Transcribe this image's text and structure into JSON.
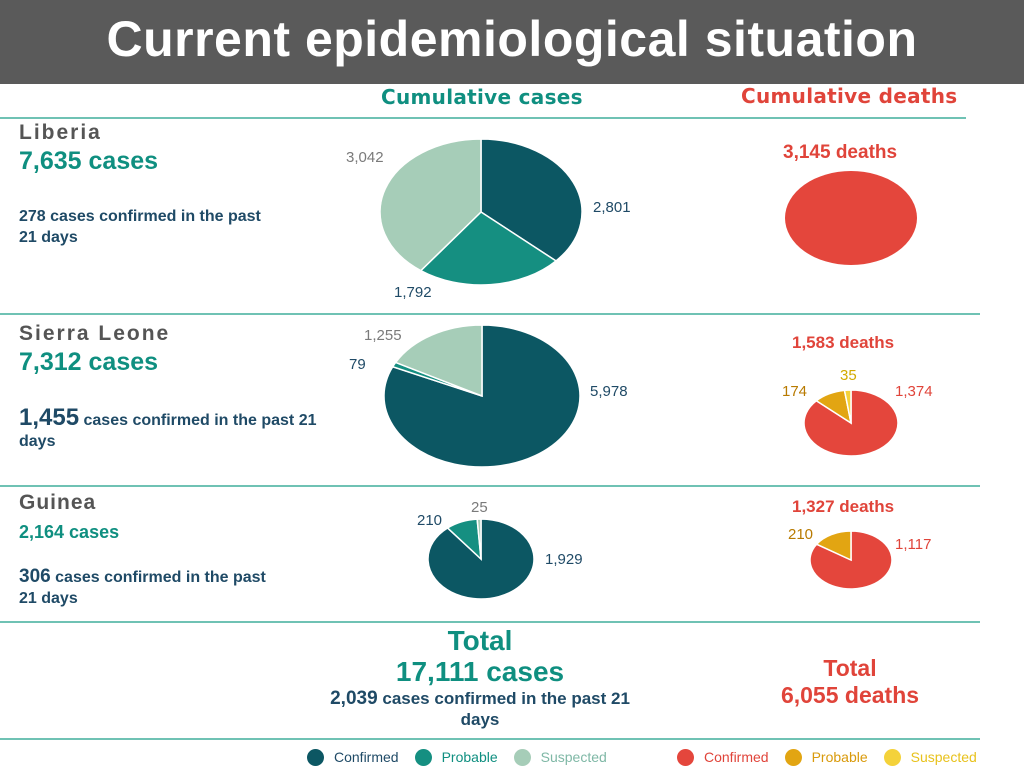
{
  "header": {
    "title": "Current epidemiological situation"
  },
  "columns": {
    "cases": "Cumulative cases",
    "deaths": "Cumulative deaths"
  },
  "colors": {
    "confirmed": "#0c5763",
    "probable": "#158f81",
    "suspected": "#a6cdb8",
    "death_confirmed": "#e4463c",
    "death_probable": "#e2a512",
    "death_suspected": "#f4d23a"
  },
  "countries": [
    {
      "name": "Liberia",
      "cases_text": "7,635 cases",
      "confirmed_text": "278 cases confirmed in the past 21 days",
      "deaths_text": "3,145 deaths"
    },
    {
      "name": "Sierra Leone",
      "cases_text": "7,312 cases",
      "confirmed_num": "1,455",
      "confirmed_rest": " cases confirmed in the past 21 days",
      "deaths_text": "1,583 deaths"
    },
    {
      "name": "Guinea",
      "cases_text": "2,164 cases",
      "confirmed_num": "306",
      "confirmed_rest": " cases confirmed in the past 21 days",
      "deaths_text": "1,327  deaths"
    }
  ],
  "total": {
    "word": "Total",
    "cases_text": "17,111 cases",
    "confirmed_num": "2,039",
    "confirmed_rest": " cases confirmed in the past 21 days",
    "deaths_word": "Total",
    "deaths_text": "6,055 deaths"
  },
  "legend": {
    "cases": [
      "Confirmed",
      "Probable",
      "Suspected"
    ],
    "deaths": [
      "Confirmed",
      "Probable",
      "Suspected"
    ]
  },
  "chart_data": [
    {
      "type": "pie",
      "id": "liberia-cases",
      "categories": [
        "Confirmed",
        "Probable",
        "Suspected"
      ],
      "values": [
        2801,
        1792,
        3042
      ],
      "labels": [
        "2,801",
        "1,792",
        "3,042"
      ]
    },
    {
      "type": "pie",
      "id": "liberia-deaths",
      "categories": [
        "Confirmed"
      ],
      "values": [
        3145
      ],
      "labels": []
    },
    {
      "type": "pie",
      "id": "sierra-leone-cases",
      "categories": [
        "Confirmed",
        "Probable",
        "Suspected"
      ],
      "values": [
        5978,
        79,
        1255
      ],
      "labels": [
        "5,978",
        "79",
        "1,255"
      ]
    },
    {
      "type": "pie",
      "id": "sierra-leone-deaths",
      "categories": [
        "Confirmed",
        "Probable",
        "Suspected"
      ],
      "values": [
        1374,
        174,
        35
      ],
      "labels": [
        "1,374",
        "174",
        "35"
      ]
    },
    {
      "type": "pie",
      "id": "guinea-cases",
      "categories": [
        "Confirmed",
        "Probable",
        "Suspected"
      ],
      "values": [
        1929,
        210,
        25
      ],
      "labels": [
        "1,929",
        "210",
        "25"
      ]
    },
    {
      "type": "pie",
      "id": "guinea-deaths",
      "categories": [
        "Confirmed",
        "Probable"
      ],
      "values": [
        1117,
        210
      ],
      "labels": [
        "1,117",
        "210"
      ]
    }
  ]
}
